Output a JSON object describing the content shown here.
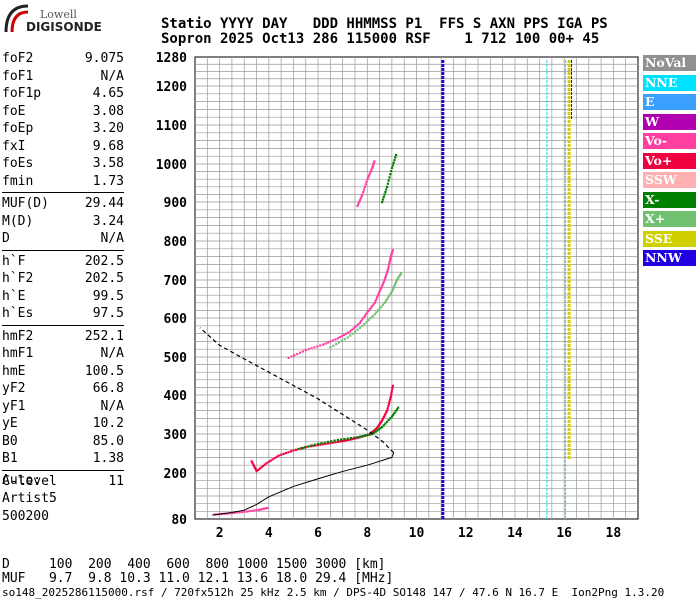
{
  "logo": {
    "sub": "Lowell",
    "main": "DIGISONDE"
  },
  "header": {
    "line1": "Statio YYYY DAY   DDD HHMMSS P1  FFS S AXN PPS IGA PS",
    "line2": "Sopron 2025 Oct13 286 115000 RSF    1 712 100 00+ 45"
  },
  "params": [
    {
      "k": "foF2",
      "v": "9.075"
    },
    {
      "k": "foF1",
      "v": "N/A"
    },
    {
      "k": "foF1p",
      "v": "4.65"
    },
    {
      "k": "foE",
      "v": "3.08"
    },
    {
      "k": "foEp",
      "v": "3.20"
    },
    {
      "k": "fxI",
      "v": "9.68"
    },
    {
      "k": "foEs",
      "v": "3.58"
    },
    {
      "k": "fmin",
      "v": "1.73"
    },
    {
      "k": "MUF(D)",
      "v": "29.44"
    },
    {
      "k": "M(D)",
      "v": "3.24"
    },
    {
      "k": "D",
      "v": "N/A"
    },
    {
      "k": "h`F",
      "v": "202.5"
    },
    {
      "k": "h`F2",
      "v": "202.5"
    },
    {
      "k": "h`E",
      "v": "99.5"
    },
    {
      "k": "h`Es",
      "v": "97.5"
    },
    {
      "k": "hmF2",
      "v": "252.1"
    },
    {
      "k": "hmF1",
      "v": "N/A"
    },
    {
      "k": "hmE",
      "v": "100.5"
    },
    {
      "k": "yF2",
      "v": "66.8"
    },
    {
      "k": "yF1",
      "v": "N/A"
    },
    {
      "k": "yE",
      "v": "10.2"
    },
    {
      "k": "B0",
      "v": "85.0"
    },
    {
      "k": "B1",
      "v": "1.38"
    },
    {
      "k": "C-level",
      "v": "11"
    }
  ],
  "auto": {
    "l1": "Auto:",
    "l2": "Artist5",
    "l3": "500200"
  },
  "legend": [
    {
      "label": "NoVal",
      "color": "#909090"
    },
    {
      "label": "NNE",
      "color": "#00e0ff"
    },
    {
      "label": "E",
      "color": "#3aa0ff"
    },
    {
      "label": "W",
      "color": "#b000b0"
    },
    {
      "label": "Vo-",
      "color": "#ff40a0"
    },
    {
      "label": "Vo+",
      "color": "#f00040"
    },
    {
      "label": "SSW",
      "color": "#ffb0b0"
    },
    {
      "label": "X-",
      "color": "#008000"
    },
    {
      "label": "X+",
      "color": "#70c070"
    },
    {
      "label": "SSE",
      "color": "#d0d000"
    },
    {
      "label": "NNW",
      "color": "#2000e0"
    }
  ],
  "chart_data": {
    "type": "scatter",
    "xlabel": "",
    "ylabel": "",
    "xlim": [
      1,
      19
    ],
    "ylim": [
      80,
      1280
    ],
    "x_ticks": [
      2,
      4,
      6,
      8,
      10,
      12,
      14,
      16,
      18
    ],
    "y_ticks": [
      80,
      200,
      300,
      400,
      500,
      600,
      700,
      800,
      900,
      1000,
      1100,
      1200,
      1280
    ],
    "series": [
      {
        "name": "Vo+",
        "x": [
          3.3,
          3.5,
          3.9,
          4.4,
          5.0,
          5.6,
          6.2,
          6.8,
          7.3,
          7.7,
          8.1,
          8.4,
          8.6,
          8.8,
          8.95,
          9.05
        ],
        "y": [
          230,
          205,
          225,
          245,
          258,
          268,
          274,
          280,
          286,
          292,
          300,
          316,
          335,
          360,
          395,
          430
        ]
      },
      {
        "name": "X-",
        "x": [
          5.2,
          6.0,
          6.8,
          7.6,
          8.2,
          8.6,
          9.0,
          9.3
        ],
        "y": [
          262,
          275,
          285,
          292,
          300,
          318,
          345,
          372
        ]
      },
      {
        "name": "Vo-",
        "x": [
          4.8,
          5.5,
          6.2,
          6.8,
          7.3,
          7.7,
          8.0,
          8.3,
          8.5,
          8.7,
          8.85,
          8.95,
          9.05
        ],
        "y": [
          498,
          518,
          532,
          548,
          566,
          588,
          615,
          640,
          670,
          700,
          730,
          760,
          780
        ]
      },
      {
        "name": "X+",
        "x": [
          6.5,
          7.2,
          7.8,
          8.3,
          8.7,
          9.0,
          9.2,
          9.4
        ],
        "y": [
          525,
          550,
          580,
          610,
          640,
          670,
          700,
          720
        ]
      },
      {
        "name": "Vo-",
        "x": [
          7.6,
          7.8,
          8.0,
          8.2,
          8.3
        ],
        "y": [
          890,
          920,
          960,
          990,
          1010
        ]
      },
      {
        "name": "X-",
        "x": [
          8.6,
          8.8,
          9.0,
          9.2
        ],
        "y": [
          900,
          940,
          990,
          1030
        ]
      },
      {
        "name": "Vo-",
        "x": [
          1.8,
          2.4,
          3.0,
          3.6,
          4.0
        ],
        "y": [
          92,
          95,
          99,
          104,
          110
        ]
      }
    ],
    "profile": {
      "x": [
        1.7,
        2.5,
        3.0,
        3.5,
        4.0,
        5.0,
        6.0,
        7.0,
        8.0,
        8.6,
        9.0,
        9.075
      ],
      "y": [
        90,
        97,
        103,
        118,
        138,
        165,
        185,
        204,
        220,
        232,
        240,
        252
      ]
    },
    "profile_top": {
      "x": [
        9.075,
        8.6,
        8.0,
        7.0,
        6.0,
        5.0,
        4.0,
        3.0,
        2.0,
        1.2
      ],
      "y": [
        252,
        282,
        310,
        350,
        390,
        425,
        460,
        495,
        530,
        575
      ]
    }
  },
  "bottom": {
    "d_row": "D     100  200  400  600  800 1000 1500 3000 [km]",
    "muf_row": "MUF   9.7  9.8 10.3 11.0 12.1 13.6 18.0 29.4 [MHz]",
    "footer": "so148_2025286115000.rsf / 720fx512h 25 kHz 2.5 km / DPS-4D SO148 147 / 47.6 N 16.7 E  Ion2Png 1.3.20"
  }
}
